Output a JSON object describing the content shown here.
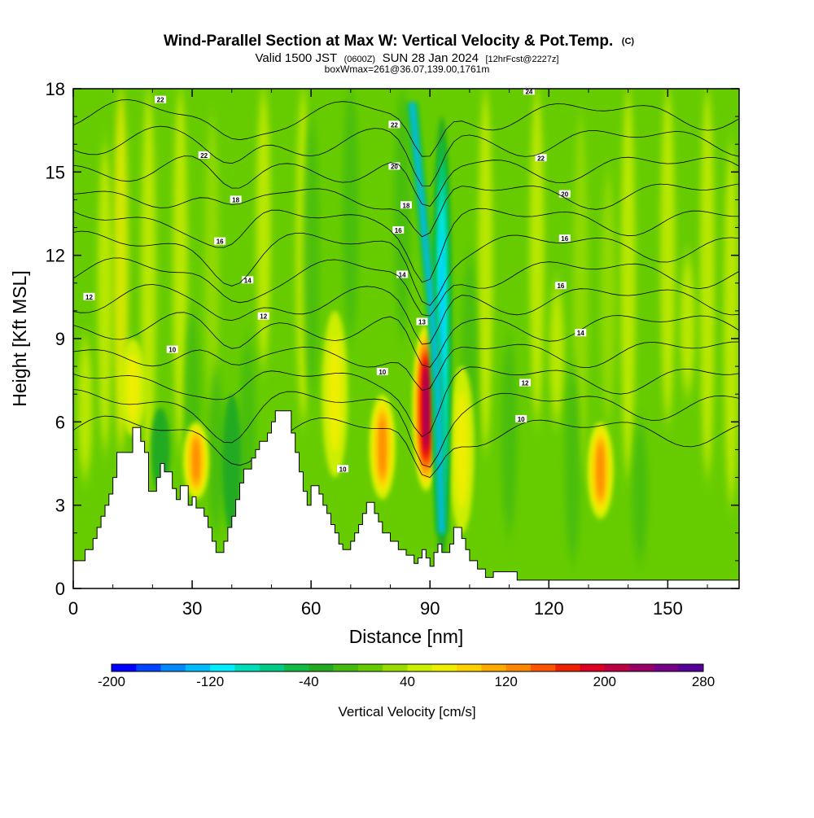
{
  "header": {
    "title_main": "Wind-Parallel Section at Max W: Vertical Velocity & Pot.Temp.",
    "title_mark": "(C)",
    "valid_prefix": "Valid 1500 JST",
    "valid_utc": "(0600Z)",
    "valid_date": "SUN 28 Jan 2024",
    "forecast_info": "[12hrFcst@2227z]",
    "box_info": "boxWmax=261@36.07,139.00,1761m"
  },
  "chart_data": {
    "type": "heatmap",
    "title": "Wind-Parallel Section at Max W: Vertical Velocity & Pot.Temp.",
    "xlabel": "Distance [nm]",
    "ylabel": "Height [Kft MSL]",
    "xlim": [
      0,
      168
    ],
    "ylim": [
      0,
      18
    ],
    "x_ticks": [
      0,
      30,
      60,
      90,
      120,
      150
    ],
    "y_ticks": [
      0,
      3,
      6,
      9,
      12,
      15,
      18
    ],
    "x_tick_labels": [
      "0",
      "30",
      "60",
      "90",
      "120",
      "150"
    ],
    "y_tick_labels": [
      "0",
      "3",
      "6",
      "9",
      "12",
      "15",
      "18"
    ],
    "colorbar": {
      "label": "Vertical Velocity [cm/s]",
      "min": -200,
      "max": 280,
      "step": 20,
      "tick_values": [
        -200,
        -120,
        -40,
        40,
        120,
        200,
        280
      ],
      "tick_labels": [
        "-200",
        "-120",
        "-40",
        "40",
        "120",
        "200",
        "280"
      ],
      "colors": [
        "#0000ff",
        "#0044ff",
        "#0088ff",
        "#00bbff",
        "#00eeff",
        "#00ddbb",
        "#00cc88",
        "#11bb44",
        "#22aa22",
        "#44bb11",
        "#66cc00",
        "#99dd00",
        "#ccee00",
        "#eeee00",
        "#ffd000",
        "#ffaa00",
        "#ff8800",
        "#ff5500",
        "#ee2200",
        "#dd0022",
        "#bb0044",
        "#990066",
        "#770088",
        "#550099"
      ]
    },
    "velocity_features": [
      {
        "kind": "updraft",
        "x": 89,
        "y_bottom": 3.5,
        "y_top": 9.5,
        "peak": 220
      },
      {
        "kind": "updraft",
        "x": 78,
        "y_bottom": 3.2,
        "y_top": 7.0,
        "peak": 120
      },
      {
        "kind": "updraft",
        "x": 31,
        "y_bottom": 3.2,
        "y_top": 6.0,
        "peak": 120
      },
      {
        "kind": "updraft",
        "x": 133,
        "y_bottom": 2.5,
        "y_top": 6.0,
        "peak": 120
      },
      {
        "kind": "updraft",
        "x": 98,
        "y_bottom": 2.0,
        "y_top": 8.0,
        "peak": 60
      },
      {
        "kind": "updraft",
        "x": 66,
        "y_bottom": 4.0,
        "y_top": 10.0,
        "peak": 60
      },
      {
        "kind": "updraft",
        "x": 15,
        "y_bottom": 5.5,
        "y_top": 9.0,
        "peak": 60
      },
      {
        "kind": "downdraft",
        "x": 93,
        "y_bottom": 1.0,
        "y_top": 17.0,
        "peak": -140
      },
      {
        "kind": "downdraft",
        "x": 40,
        "y_bottom": 2.0,
        "y_top": 7.0,
        "peak": -50
      },
      {
        "kind": "downdraft",
        "x": 22,
        "y_bottom": 3.5,
        "y_top": 6.5,
        "peak": -50
      }
    ],
    "terrain": [
      [
        0,
        1
      ],
      [
        3,
        1
      ],
      [
        3,
        1.4
      ],
      [
        5,
        1.4
      ],
      [
        5,
        1.8
      ],
      [
        6,
        1.8
      ],
      [
        6,
        2.2
      ],
      [
        7,
        2.2
      ],
      [
        7,
        2.6
      ],
      [
        8,
        2.6
      ],
      [
        8,
        3.0
      ],
      [
        9,
        3.0
      ],
      [
        9,
        3.4
      ],
      [
        10,
        3.4
      ],
      [
        10,
        4.0
      ],
      [
        11,
        4.0
      ],
      [
        11,
        4.9
      ],
      [
        15,
        4.9
      ],
      [
        15,
        5.8
      ],
      [
        17,
        5.8
      ],
      [
        17,
        5.3
      ],
      [
        18,
        5.3
      ],
      [
        18,
        4.9
      ],
      [
        19,
        4.9
      ],
      [
        19,
        3.5
      ],
      [
        21,
        3.5
      ],
      [
        21,
        4.0
      ],
      [
        22,
        4.0
      ],
      [
        22,
        4.5
      ],
      [
        23,
        4.5
      ],
      [
        23,
        4.2
      ],
      [
        25,
        4.2
      ],
      [
        25,
        3.6
      ],
      [
        26,
        3.6
      ],
      [
        26,
        3.2
      ],
      [
        27,
        3.2
      ],
      [
        27,
        3.7
      ],
      [
        29,
        3.7
      ],
      [
        29,
        3.0
      ],
      [
        30,
        3.0
      ],
      [
        30,
        3.3
      ],
      [
        31,
        3.3
      ],
      [
        31,
        2.9
      ],
      [
        33,
        2.9
      ],
      [
        33,
        2.6
      ],
      [
        34,
        2.6
      ],
      [
        34,
        2.2
      ],
      [
        35,
        2.2
      ],
      [
        35,
        1.7
      ],
      [
        36,
        1.7
      ],
      [
        36,
        1.3
      ],
      [
        38,
        1.3
      ],
      [
        38,
        1.7
      ],
      [
        39,
        1.7
      ],
      [
        39,
        2.2
      ],
      [
        40,
        2.2
      ],
      [
        40,
        2.6
      ],
      [
        41,
        2.6
      ],
      [
        41,
        3.2
      ],
      [
        42,
        3.2
      ],
      [
        42,
        3.8
      ],
      [
        43,
        3.8
      ],
      [
        43,
        4.3
      ],
      [
        45,
        4.3
      ],
      [
        45,
        4.7
      ],
      [
        46,
        4.7
      ],
      [
        46,
        5.0
      ],
      [
        47,
        5.0
      ],
      [
        47,
        5.3
      ],
      [
        49,
        5.3
      ],
      [
        49,
        5.6
      ],
      [
        50,
        5.6
      ],
      [
        50,
        6.0
      ],
      [
        51,
        6.0
      ],
      [
        51,
        6.4
      ],
      [
        55,
        6.4
      ],
      [
        55,
        5.6
      ],
      [
        56,
        5.6
      ],
      [
        56,
        4.9
      ],
      [
        57,
        4.9
      ],
      [
        57,
        4.2
      ],
      [
        58,
        4.2
      ],
      [
        58,
        3.5
      ],
      [
        59,
        3.5
      ],
      [
        59,
        3.0
      ],
      [
        60,
        3.0
      ],
      [
        60,
        3.7
      ],
      [
        62,
        3.7
      ],
      [
        62,
        3.4
      ],
      [
        63,
        3.4
      ],
      [
        63,
        3.0
      ],
      [
        64,
        3.0
      ],
      [
        64,
        2.7
      ],
      [
        65,
        2.7
      ],
      [
        65,
        2.3
      ],
      [
        66,
        2.3
      ],
      [
        66,
        2.0
      ],
      [
        67,
        2.0
      ],
      [
        67,
        1.6
      ],
      [
        68,
        1.6
      ],
      [
        68,
        1.4
      ],
      [
        70,
        1.4
      ],
      [
        70,
        1.7
      ],
      [
        71,
        1.7
      ],
      [
        71,
        2.0
      ],
      [
        72,
        2.0
      ],
      [
        72,
        2.3
      ],
      [
        73,
        2.3
      ],
      [
        73,
        2.7
      ],
      [
        74,
        2.7
      ],
      [
        74,
        3.1
      ],
      [
        76,
        3.1
      ],
      [
        76,
        2.7
      ],
      [
        77,
        2.7
      ],
      [
        77,
        2.4
      ],
      [
        78,
        2.4
      ],
      [
        78,
        2.0
      ],
      [
        80,
        2.0
      ],
      [
        80,
        1.7
      ],
      [
        82,
        1.7
      ],
      [
        82,
        1.4
      ],
      [
        84,
        1.4
      ],
      [
        84,
        1.2
      ],
      [
        86,
        1.2
      ],
      [
        86,
        0.9
      ],
      [
        87,
        0.9
      ],
      [
        87,
        1.1
      ],
      [
        88,
        1.1
      ],
      [
        88,
        1.4
      ],
      [
        89,
        1.4
      ],
      [
        89,
        1.1
      ],
      [
        90,
        1.1
      ],
      [
        90,
        0.8
      ],
      [
        91,
        0.8
      ],
      [
        91,
        1.3
      ],
      [
        92,
        1.3
      ],
      [
        92,
        1.6
      ],
      [
        93,
        1.6
      ],
      [
        93,
        1.3
      ],
      [
        95,
        1.3
      ],
      [
        95,
        1.6
      ],
      [
        96,
        1.6
      ],
      [
        96,
        2.2
      ],
      [
        98,
        2.2
      ],
      [
        98,
        1.8
      ],
      [
        99,
        1.8
      ],
      [
        99,
        1.4
      ],
      [
        100,
        1.4
      ],
      [
        100,
        1.0
      ],
      [
        102,
        1.0
      ],
      [
        102,
        0.7
      ],
      [
        104,
        0.7
      ],
      [
        104,
        0.4
      ],
      [
        106,
        0.4
      ],
      [
        106,
        0.6
      ],
      [
        112,
        0.6
      ],
      [
        112,
        0.3
      ],
      [
        168,
        0.3
      ]
    ],
    "theta_contours": [
      {
        "label": "10",
        "labels_at": [
          [
            25,
            8.6
          ],
          [
            68,
            4.3
          ],
          [
            78,
            7.8
          ],
          [
            113,
            6.1
          ]
        ]
      },
      {
        "label": "12",
        "labels_at": [
          [
            4,
            10.5
          ],
          [
            48,
            9.8
          ],
          [
            114,
            7.4
          ]
        ]
      },
      {
        "label": "12",
        "labels_at": []
      },
      {
        "label": "13",
        "labels_at": [
          [
            88,
            9.6
          ]
        ]
      },
      {
        "label": "14",
        "labels_at": [
          [
            44,
            11.1
          ],
          [
            83,
            11.3
          ],
          [
            128,
            9.2
          ]
        ]
      },
      {
        "label": "16",
        "labels_at": [
          [
            37,
            12.5
          ],
          [
            123,
            10.9
          ]
        ]
      },
      {
        "label": "16",
        "labels_at": [
          [
            82,
            12.9
          ],
          [
            124,
            12.6
          ]
        ]
      },
      {
        "label": "18",
        "labels_at": [
          [
            41,
            14.0
          ],
          [
            84,
            13.8
          ]
        ]
      },
      {
        "label": "20",
        "labels_at": [
          [
            81,
            15.2
          ],
          [
            124,
            14.2
          ]
        ]
      },
      {
        "label": "22",
        "labels_at": [
          [
            33,
            15.6
          ],
          [
            118,
            15.5
          ]
        ]
      },
      {
        "label": "22",
        "labels_at": [
          [
            81,
            16.7
          ]
        ]
      },
      {
        "label": "22",
        "labels_at": [
          [
            22,
            17.6
          ]
        ]
      },
      {
        "label": "24",
        "labels_at": [
          [
            115,
            17.9
          ]
        ]
      }
    ]
  }
}
